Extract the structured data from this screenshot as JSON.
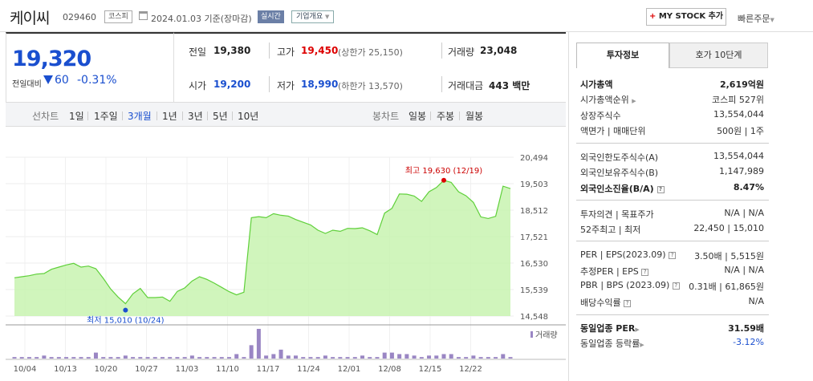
{
  "header": {
    "name": "케이씨",
    "code": "029460",
    "market": "코스피",
    "as_of": "2024.01.03 기준(장마감)",
    "realtime": "실시간",
    "corp_info": "기업개요",
    "mystock": "MY STOCK 추가",
    "quick_order": "빠른주문"
  },
  "price": {
    "current": "19,320",
    "prev_label": "전일대비",
    "change": "60",
    "change_pct": "-0.31%"
  },
  "quotes": {
    "prev_close_label": "전일",
    "prev_close": "19,380",
    "high_label": "고가",
    "high": "19,450",
    "upper_limit": "(상한가 25,150)",
    "volume_label": "거래량",
    "volume": "23,048",
    "open_label": "시가",
    "open": "19,200",
    "low_label": "저가",
    "low": "18,990",
    "lower_limit": "(하한가 13,570)",
    "amount_label": "거래대금",
    "amount": "443 백만"
  },
  "periods": {
    "line_label": "선차트",
    "items": [
      "1일",
      "1주일",
      "3개월",
      "1년",
      "3년",
      "5년",
      "10년"
    ],
    "selected": "3개월",
    "candle_label": "봉차트",
    "candle_items": [
      "일봉",
      "주봉",
      "월봉"
    ]
  },
  "chart_data": {
    "type": "line",
    "y_ticks": [
      "20,494",
      "19,503",
      "18,512",
      "17,521",
      "16,530",
      "15,539",
      "14,548"
    ],
    "ylim": [
      14548,
      20494
    ],
    "x_labels": [
      "10/04",
      "10/13",
      "10/20",
      "10/27",
      "11/03",
      "11/10",
      "11/17",
      "11/24",
      "12/01",
      "12/08",
      "12/15",
      "12/22"
    ],
    "values": [
      15980,
      16020,
      16060,
      16120,
      16140,
      16300,
      16380,
      16460,
      16520,
      16380,
      16420,
      16320,
      15960,
      15560,
      15260,
      15010,
      15380,
      15580,
      15240,
      15240,
      15260,
      15100,
      15470,
      15600,
      15860,
      16020,
      15920,
      15780,
      15620,
      15460,
      15340,
      15440,
      18230,
      18270,
      18230,
      18380,
      18320,
      18290,
      18160,
      18060,
      17960,
      17760,
      17640,
      17760,
      17720,
      17830,
      17820,
      17850,
      17740,
      17600,
      18400,
      18580,
      19120,
      19110,
      19040,
      18840,
      19200,
      19360,
      19630,
      19550,
      19200,
      19050,
      18800,
      18260,
      18200,
      18280,
      19410,
      19320
    ],
    "volumes": [
      1,
      1,
      1,
      1,
      2,
      1,
      1,
      1,
      1,
      1,
      1,
      4,
      1,
      1,
      1,
      2,
      1,
      1,
      1,
      1,
      1,
      1,
      1,
      1,
      2,
      1,
      1,
      1,
      1,
      1,
      3,
      1,
      9,
      20,
      2,
      3,
      6,
      2,
      2,
      1,
      1,
      1,
      2,
      1,
      1,
      1,
      1,
      2,
      1,
      1,
      4,
      4,
      3,
      3,
      2,
      1,
      2,
      2,
      3,
      3,
      1,
      1,
      2,
      1,
      1,
      1,
      3,
      1
    ],
    "high_annotation": "최고 19,630 (12/19)",
    "low_annotation": "최저 15,010 (10/24)",
    "volume_label": "거래량",
    "line_color": "#5fd03a",
    "fill_color": "#c8f3b0",
    "volume_color": "#9a86c4"
  },
  "tabs": [
    "투자정보",
    "호가 10단계"
  ],
  "info": {
    "mcap_label": "시가총액",
    "mcap": "2,619억원",
    "mcap_rank_label": "시가총액순위",
    "mcap_rank": "코스피 527위",
    "shares_label": "상장주식수",
    "shares": "13,554,044",
    "par_label": "액면가 | 매매단위",
    "par": "500원 | 1주",
    "foreign_limit_label": "외국인한도주식수(A)",
    "foreign_limit": "13,554,044",
    "foreign_hold_label": "외국인보유주식수(B)",
    "foreign_hold": "1,147,989",
    "foreign_rate_label": "외국인소진율(B/A)",
    "foreign_rate": "8.47%",
    "opinion_label": "투자의견 | 목표주가",
    "opinion": "N/A | N/A",
    "week52_label": "52주최고 | 최저",
    "week52": "22,450 | 15,010",
    "per_label": "PER | EPS(2023.09)",
    "per": "3.50배 | 5,515원",
    "est_per_label": "추정PER | EPS",
    "est_per": "N/A | N/A",
    "pbr_label": "PBR | BPS (2023.09)",
    "pbr": "0.31배 | 61,865원",
    "dividend_label": "배당수익률",
    "dividend": "N/A",
    "sector_per_label": "동일업종 PER",
    "sector_per": "31.59배",
    "sector_change_label": "동일업종 등락률",
    "sector_change": "-3.12%"
  }
}
